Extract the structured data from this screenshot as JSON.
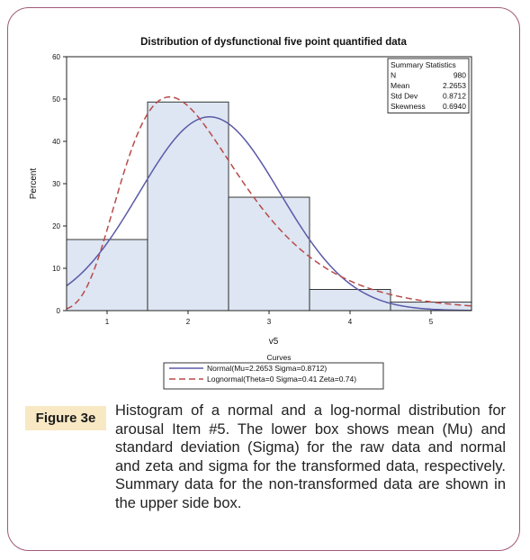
{
  "figure": {
    "label": "Figure 3e",
    "caption": "Histogram of a normal and a log-normal distribution for arousal Item #5. The lower box shows mean (Mu) and standard deviation (Sigma) for the raw data and normal and zeta and sigma for the transformed data, respectively. Summary data for the non-transformed data are shown in the upper side box."
  },
  "chart_data": {
    "type": "bar",
    "title": "Distribution of dysfunctional five point quantified data",
    "xlabel": "v5",
    "ylabel": "Percent",
    "xlim": [
      0.5,
      5.5
    ],
    "ylim": [
      0,
      60
    ],
    "xticks": [
      1,
      2,
      3,
      4,
      5
    ],
    "yticks": [
      0,
      10,
      20,
      30,
      40,
      50,
      60
    ],
    "categories": [
      "1",
      "2",
      "3",
      "4",
      "5"
    ],
    "values": [
      16.8,
      49.3,
      26.8,
      5.0,
      2.0
    ],
    "bar_fill": "#dde6f2",
    "bar_stroke": "#222222",
    "curves": {
      "title": "Curves",
      "series": [
        {
          "name": "Normal(Mu=2.2653 Sigma=0.8712)",
          "kind": "normal",
          "mu": 2.2653,
          "sigma": 0.8712,
          "color": "#5a5aa8",
          "dash": "solid"
        },
        {
          "name": "Lognormal(Theta=0 Sigma=0.41 Zeta=0.74)",
          "kind": "lognormal",
          "theta": 0,
          "sigma": 0.41,
          "zeta": 0.74,
          "color": "#b84a4a",
          "dash": "dashed"
        }
      ]
    },
    "summary": {
      "title": "Summary Statistics",
      "rows": [
        {
          "label": "N",
          "value": "980"
        },
        {
          "label": "Mean",
          "value": "2.2653"
        },
        {
          "label": "Std Dev",
          "value": "0.8712"
        },
        {
          "label": "Skewness",
          "value": "0.6940"
        }
      ]
    },
    "grid": false
  }
}
